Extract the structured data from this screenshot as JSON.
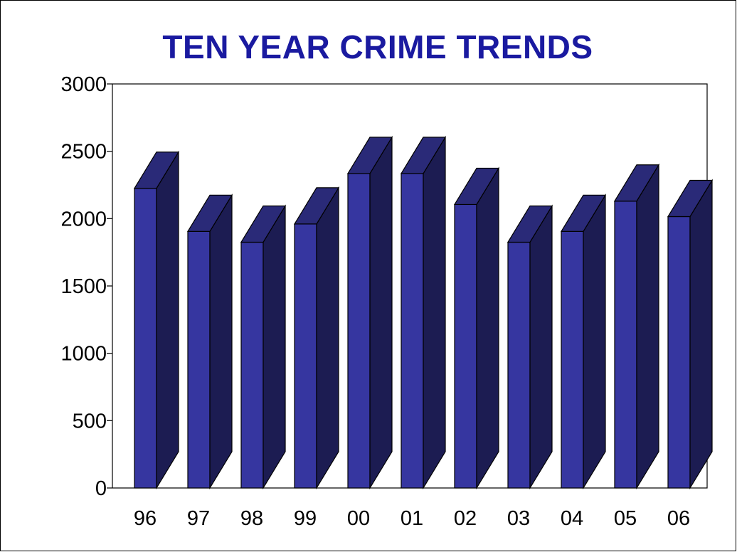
{
  "chart_data": {
    "type": "bar",
    "title": "TEN YEAR CRIME TRENDS",
    "categories": [
      "96",
      "97",
      "98",
      "99",
      "00",
      "01",
      "02",
      "03",
      "04",
      "05",
      "06"
    ],
    "values": [
      2225,
      1905,
      1825,
      1960,
      2335,
      2335,
      2105,
      1825,
      1905,
      2130,
      2015
    ],
    "yticks": [
      0,
      500,
      1000,
      1500,
      2000,
      2500,
      3000
    ],
    "ylim": [
      0,
      3000
    ],
    "xlabel": "",
    "ylabel": "",
    "grid": false,
    "legend": "none",
    "colors": {
      "front": "#3636a0",
      "side": "#1c1c52",
      "top": "#2a2a78",
      "title": "#1a1aa0"
    }
  }
}
